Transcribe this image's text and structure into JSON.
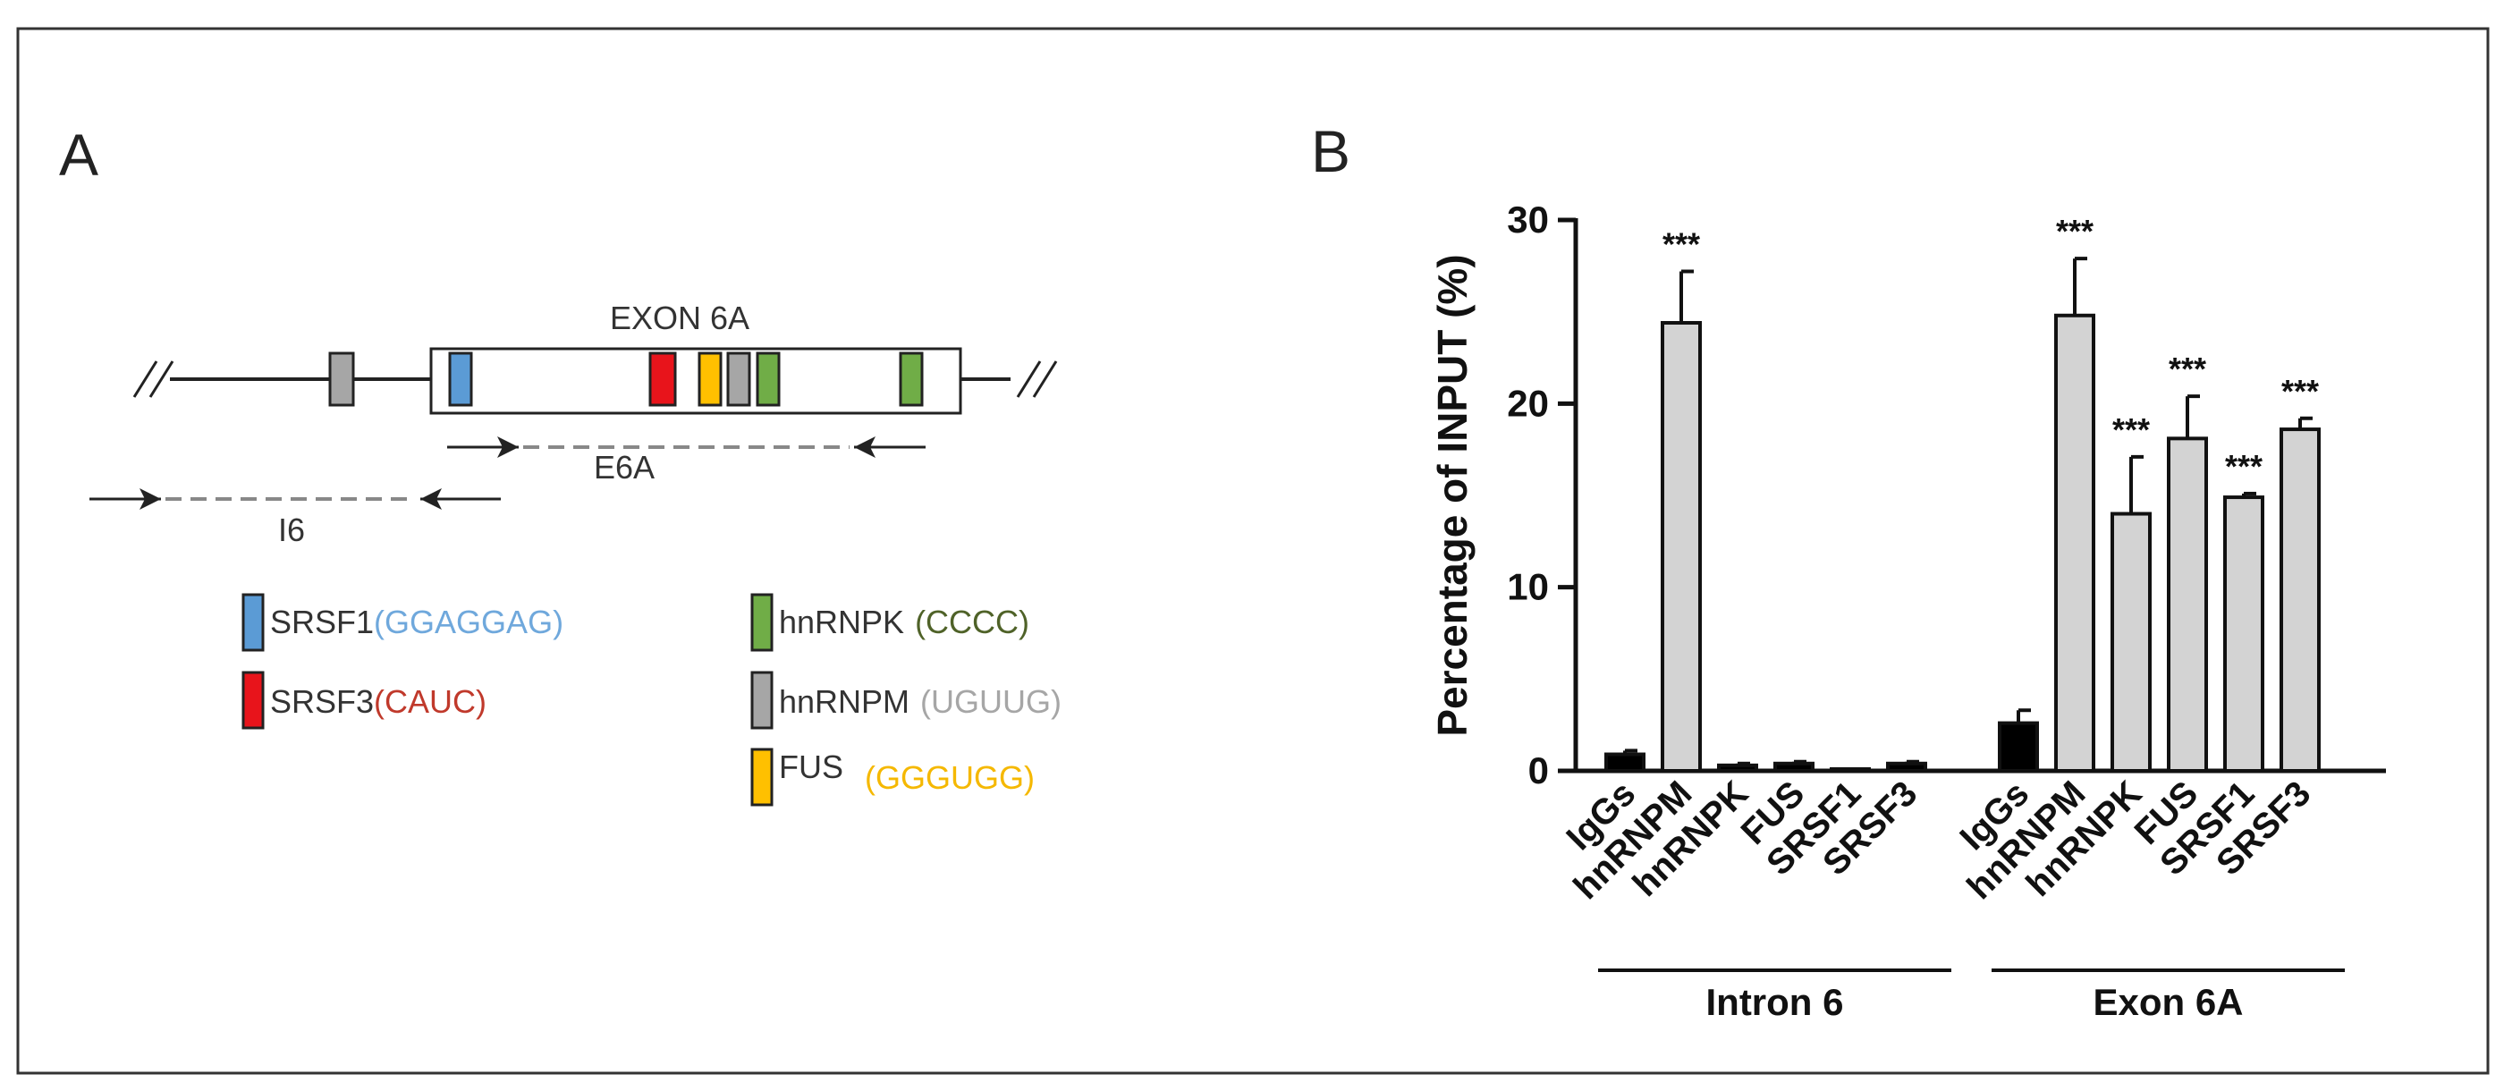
{
  "panel_a": {
    "label": "A",
    "exon_label": "EXON 6A",
    "primer_e6a_label": "E6A",
    "primer_i6_label": "I6",
    "legend": [
      {
        "protein": "SRSF1",
        "motif": "(GGAGGAG)",
        "color": "#5b9bd5",
        "motif_color": "#6fa8dc"
      },
      {
        "protein": "SRSF3",
        "motif": "(CAUC)",
        "color": "#e8141b",
        "motif_color": "#c0392b"
      },
      {
        "protein": "hnRNPK",
        "motif": "(CCCC)",
        "color": "#70ad47",
        "motif_color": "#4f6228"
      },
      {
        "protein": "hnRNPM",
        "motif": "(UGUUG)",
        "color": "#a6a6a6",
        "motif_color": "#a6a6a6"
      },
      {
        "protein": "FUS",
        "motif": "(GGGUGG)",
        "color": "#ffc000",
        "motif_color": "#f5b800"
      }
    ]
  },
  "chart_data": {
    "panel_label": "B",
    "type": "bar",
    "ylabel": "Percentage of INPUT (%)",
    "ylim": [
      0,
      30
    ],
    "yticks": [
      0,
      10,
      20,
      30
    ],
    "significance_label": "***",
    "groups": [
      {
        "name": "Intron 6",
        "categories": [
          "IgGs",
          "hnRNPM",
          "hnRNPK",
          "FUS",
          "SRSF1",
          "SRSF3"
        ],
        "values": [
          0.9,
          24.4,
          0.3,
          0.4,
          0.1,
          0.4
        ],
        "errors": [
          0.2,
          2.8,
          0.1,
          0.1,
          0.0,
          0.1
        ],
        "significant": [
          false,
          true,
          false,
          false,
          false,
          false
        ],
        "fills": [
          "#000000",
          "#d3d3d3",
          "#000000",
          "#000000",
          "#000000",
          "#000000"
        ]
      },
      {
        "name": "Exon 6A",
        "categories": [
          "IgGs",
          "hnRNPM",
          "hnRNPK",
          "FUS",
          "SRSF1",
          "SRSF3"
        ],
        "values": [
          2.6,
          24.8,
          14.0,
          18.1,
          14.9,
          18.6
        ],
        "errors": [
          0.7,
          3.1,
          3.1,
          2.3,
          0.2,
          0.6
        ],
        "significant": [
          false,
          true,
          true,
          true,
          true,
          true
        ],
        "fills": [
          "#000000",
          "#d3d3d3",
          "#d3d3d3",
          "#d3d3d3",
          "#d3d3d3",
          "#d3d3d3"
        ]
      }
    ]
  }
}
